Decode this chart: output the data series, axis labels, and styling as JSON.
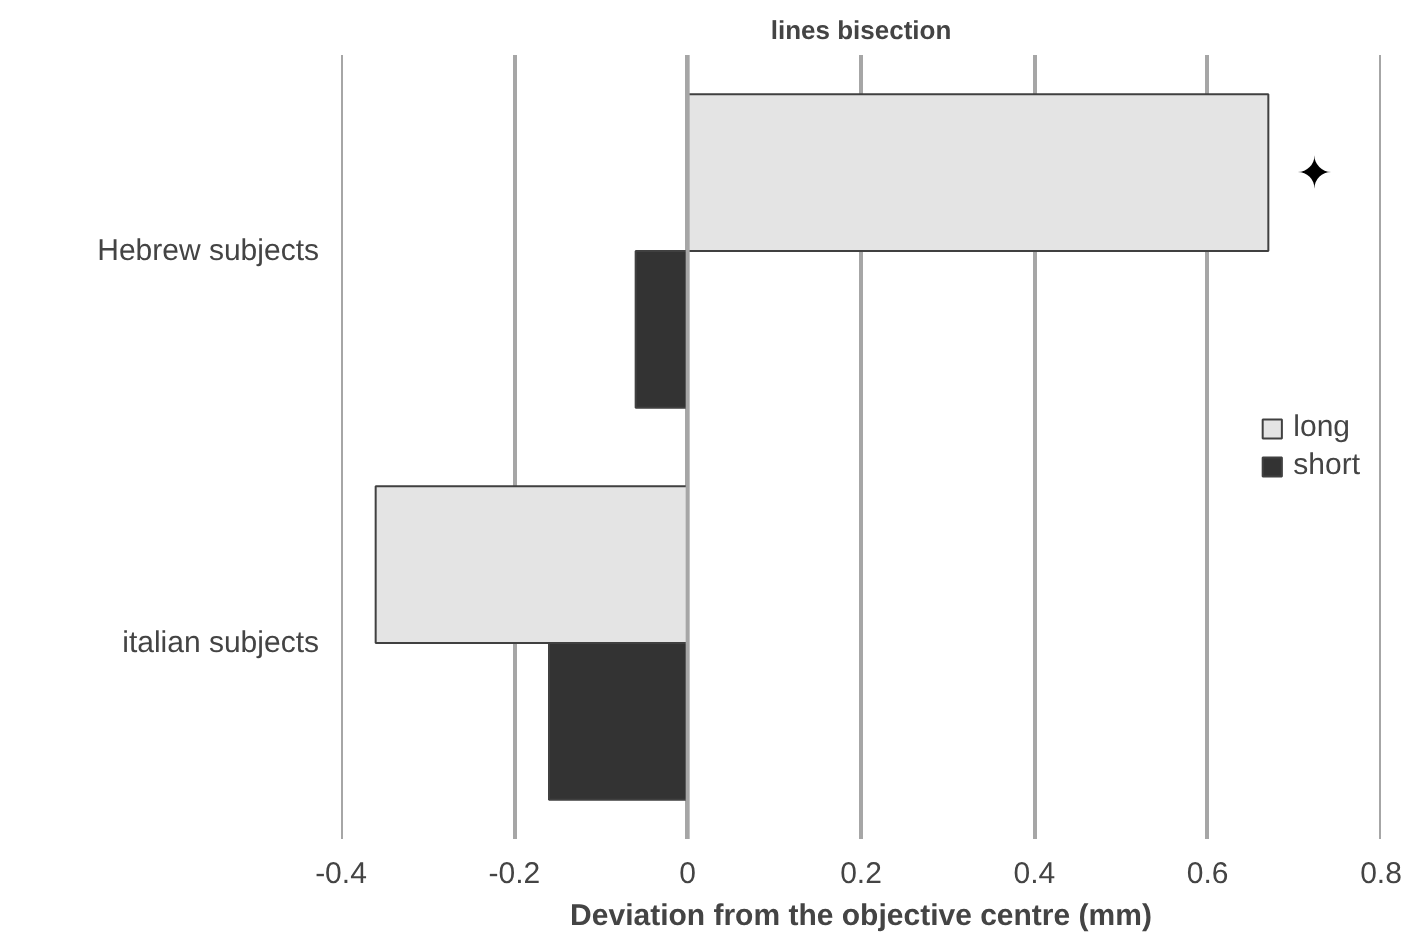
{
  "chart_data": {
    "type": "bar",
    "orientation": "horizontal",
    "title": "lines bisection",
    "xlabel": "Deviation from the objective centre (mm)",
    "categories": [
      "Hebrew subjects",
      "italian subjects"
    ],
    "series": [
      {
        "name": "long",
        "color": "#e4e4e4",
        "values": [
          0.67,
          -0.36
        ]
      },
      {
        "name": "short",
        "color": "#333333",
        "values": [
          -0.06,
          -0.16
        ]
      }
    ],
    "xlim": [
      -0.4,
      0.8
    ],
    "xticks": [
      -0.4,
      -0.2,
      0,
      0.2,
      0.4,
      0.6,
      0.8
    ],
    "grid": "x",
    "legend": "right",
    "annotations": [
      "✦"
    ]
  }
}
